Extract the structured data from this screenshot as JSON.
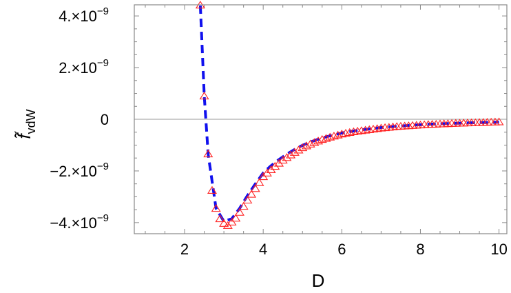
{
  "chart_data": {
    "type": "line",
    "title": "",
    "xlabel": "D",
    "ylabel": "f̃",
    "ylabel_subscript": "vdW",
    "xlim": [
      0.72,
      10.2
    ],
    "ylim": [
      -4.43e-09,
      4.43e-09
    ],
    "x_ticks": [
      2,
      4,
      6,
      8,
      10
    ],
    "x_tick_labels": [
      "2",
      "4",
      "6",
      "8",
      "10"
    ],
    "y_ticks": [
      4e-09,
      2e-09,
      0,
      -2e-09,
      -4e-09
    ],
    "y_tick_labels": [
      {
        "mantissa": "4.",
        "times": "×",
        "base": "10",
        "exp": "−9"
      },
      {
        "mantissa": "2.",
        "times": "×",
        "base": "10",
        "exp": "−9"
      },
      {
        "mantissa": "0",
        "times": "",
        "base": "",
        "exp": ""
      },
      {
        "mantissa": "−2.",
        "times": "×",
        "base": "10",
        "exp": "−9"
      },
      {
        "mantissa": "−4.",
        "times": "×",
        "base": "10",
        "exp": "−9"
      }
    ],
    "grid": false,
    "zero_line": true,
    "legend": "none",
    "series": [
      {
        "style": "markers",
        "marker": "open-triangle",
        "color": "#ff2020",
        "x": [
          2.4,
          2.5,
          2.6,
          2.7,
          2.8,
          2.9,
          3.0,
          3.1,
          3.2,
          3.3,
          3.4,
          3.5,
          3.6,
          3.7,
          3.8,
          3.9,
          4.0,
          4.1,
          4.2,
          4.3,
          4.4,
          4.5,
          4.6,
          4.7,
          4.8,
          4.9,
          5.0,
          5.1,
          5.2,
          5.3,
          5.4,
          5.5,
          5.6,
          5.7,
          5.8,
          5.9,
          6.0,
          6.1,
          6.2,
          6.3,
          6.4,
          6.5,
          6.6,
          6.7,
          6.8,
          6.9,
          7.0,
          7.1,
          7.2,
          7.3,
          7.4,
          7.5,
          7.6,
          7.7,
          7.8,
          7.9,
          8.0,
          8.1,
          8.2,
          8.3,
          8.4,
          8.5,
          8.6,
          8.7,
          8.8,
          8.9,
          9.0,
          9.1,
          9.2,
          9.3,
          9.4,
          9.5,
          9.6,
          9.7,
          9.8,
          9.9,
          10.0
        ],
        "y": [
          4.4e-09,
          8.8e-10,
          -1.36e-09,
          -2.77e-09,
          -3.47e-09,
          -3.87e-09,
          -4.05e-09,
          -4.13e-09,
          -4e-09,
          -3.85e-09,
          -3.62e-09,
          -3.39e-09,
          -3.15e-09,
          -2.92e-09,
          -2.7e-09,
          -2.47e-09,
          -2.24e-09,
          -2.1e-09,
          -1.97e-09,
          -1.84e-09,
          -1.72e-09,
          -1.6e-09,
          -1.5e-09,
          -1.4e-09,
          -1.3e-09,
          -1.21e-09,
          -1.12e-09,
          -1.05e-09,
          -9.8e-10,
          -9.2e-10,
          -8.6e-10,
          -8e-10,
          -7.6e-10,
          -7.1e-10,
          -6.7e-10,
          -6.3e-10,
          -5.9e-10,
          -5.6e-10,
          -5.3e-10,
          -5e-10,
          -4.8e-10,
          -4.6e-10,
          -4.4e-10,
          -4.2e-10,
          -4e-10,
          -3.8e-10,
          -3.6e-10,
          -3.45e-10,
          -3.3e-10,
          -3.15e-10,
          -3e-10,
          -2.9e-10,
          -2.8e-10,
          -2.7e-10,
          -2.6e-10,
          -2.5e-10,
          -2.4e-10,
          -2.3e-10,
          -2.2e-10,
          -2.15e-10,
          -2.1e-10,
          -2e-10,
          -1.95e-10,
          -1.9e-10,
          -1.8e-10,
          -1.75e-10,
          -1.7e-10,
          -1.65e-10,
          -1.6e-10,
          -1.55e-10,
          -1.5e-10,
          -1.45e-10,
          -1.4e-10,
          -1.35e-10,
          -1.3e-10,
          -1.25e-10,
          -1.2e-10
        ]
      },
      {
        "style": "dashed-line",
        "color": "#1010ee",
        "x": [
          2.4,
          2.5,
          2.6,
          2.8,
          3.0,
          3.2,
          3.4,
          3.6,
          3.8,
          4.0,
          4.2,
          4.4,
          4.6,
          4.8,
          5.0,
          5.2,
          5.4,
          5.6,
          5.8,
          6.0,
          6.2,
          6.4,
          6.6,
          6.8,
          7.0,
          7.2,
          7.4,
          7.6,
          7.8,
          8.0,
          8.2,
          8.4,
          8.6,
          8.8,
          9.0,
          9.2,
          9.4,
          9.6,
          9.8,
          10.0
        ],
        "y": [
          4.4e-09,
          9e-10,
          -1.36e-09,
          -3.45e-09,
          -3.95e-09,
          -3.85e-09,
          -3.45e-09,
          -2.95e-09,
          -2.5e-09,
          -2.08e-09,
          -1.8e-09,
          -1.56e-09,
          -1.35e-09,
          -1.17e-09,
          -1.01e-09,
          -8.8e-10,
          -7.7e-10,
          -6.8e-10,
          -6e-10,
          -5.3e-10,
          -4.8e-10,
          -4.3e-10,
          -3.9e-10,
          -3.55e-10,
          -3.2e-10,
          -2.95e-10,
          -2.7e-10,
          -2.5e-10,
          -2.3e-10,
          -2.1e-10,
          -1.95e-10,
          -1.8e-10,
          -1.7e-10,
          -1.6e-10,
          -1.5e-10,
          -1.4e-10,
          -1.3e-10,
          -1.25e-10,
          -1.2e-10,
          -1.15e-10
        ]
      }
    ]
  }
}
